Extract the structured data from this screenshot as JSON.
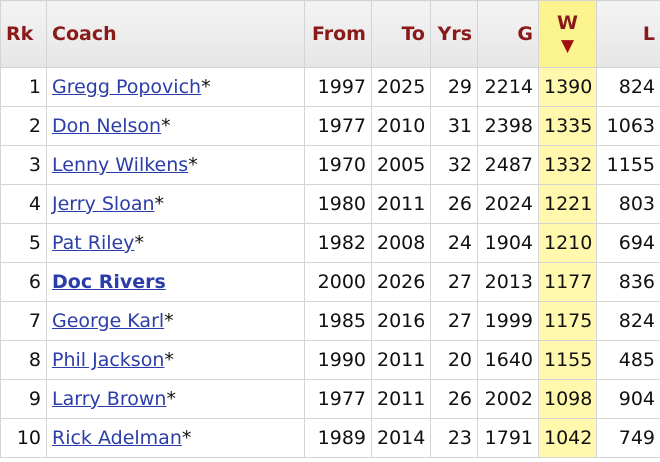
{
  "header": {
    "columns": [
      "Rk",
      "Coach",
      "From",
      "To",
      "Yrs",
      "G",
      "W",
      "L"
    ],
    "sort_column": 6,
    "sort_indicator": "▼"
  },
  "table": {
    "rows": [
      {
        "rk": 1,
        "coach": "Gregg Popovich",
        "mark": "*",
        "from": 1997,
        "to": 2025,
        "yrs": 29,
        "g": 2214,
        "w": 1390,
        "l": 824
      },
      {
        "rk": 2,
        "coach": "Don Nelson",
        "mark": "*",
        "from": 1977,
        "to": 2010,
        "yrs": 31,
        "g": 2398,
        "w": 1335,
        "l": 1063
      },
      {
        "rk": 3,
        "coach": "Lenny Wilkens",
        "mark": "*",
        "from": 1970,
        "to": 2005,
        "yrs": 32,
        "g": 2487,
        "w": 1332,
        "l": 1155
      },
      {
        "rk": 4,
        "coach": "Jerry Sloan",
        "mark": "*",
        "from": 1980,
        "to": 2011,
        "yrs": 26,
        "g": 2024,
        "w": 1221,
        "l": 803
      },
      {
        "rk": 5,
        "coach": "Pat Riley",
        "mark": "*",
        "from": 1982,
        "to": 2008,
        "yrs": 24,
        "g": 1904,
        "w": 1210,
        "l": 694
      },
      {
        "rk": 6,
        "coach": "Doc Rivers",
        "bold": true,
        "from": 2000,
        "to": 2026,
        "yrs": 27,
        "g": 2013,
        "w": 1177,
        "l": 836
      },
      {
        "rk": 7,
        "coach": "George Karl",
        "mark": "*",
        "from": 1985,
        "to": 2016,
        "yrs": 27,
        "g": 1999,
        "w": 1175,
        "l": 824
      },
      {
        "rk": 8,
        "coach": "Phil Jackson",
        "mark": "*",
        "from": 1990,
        "to": 2011,
        "yrs": 20,
        "g": 1640,
        "w": 1155,
        "l": 485
      },
      {
        "rk": 9,
        "coach": "Larry Brown",
        "mark": "*",
        "from": 1977,
        "to": 2011,
        "yrs": 26,
        "g": 2002,
        "w": 1098,
        "l": 904
      },
      {
        "rk": 10,
        "coach": "Rick Adelman",
        "mark": "*",
        "from": 1989,
        "to": 2014,
        "yrs": 23,
        "g": 1791,
        "w": 1042,
        "l": 749
      }
    ]
  }
}
